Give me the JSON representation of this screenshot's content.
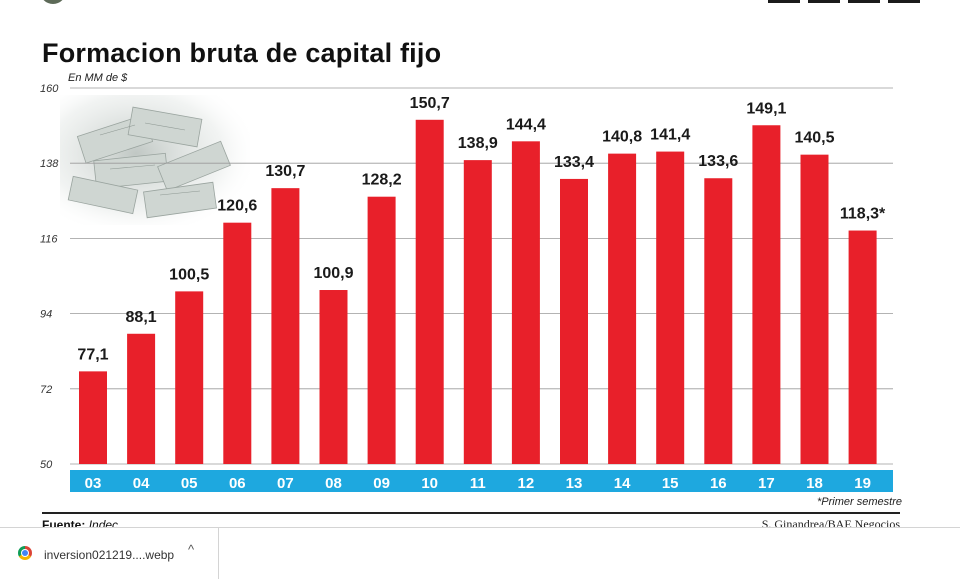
{
  "title": "Formacion bruta de capital fijo",
  "unit_label": "En MM de $",
  "footnote": "*Primer semestre",
  "source": {
    "label": "Fuente:",
    "value": "Indec"
  },
  "credit": "S. Ginandrea/BAE Negocios",
  "colors": {
    "bar": "#e8202a",
    "axis_band": "#1ea8df",
    "grid": "#9a9a9a"
  },
  "download": {
    "file_name": "inversion021219....webp",
    "icon": "chrome-icon",
    "chevron": "^"
  },
  "chart_data": {
    "type": "bar",
    "title": "Formacion bruta de capital fijo",
    "ylabel": "En MM de $",
    "categories": [
      "03",
      "04",
      "05",
      "06",
      "07",
      "08",
      "09",
      "10",
      "11",
      "12",
      "13",
      "14",
      "15",
      "16",
      "17",
      "18",
      "19"
    ],
    "values": [
      77.1,
      88.1,
      100.5,
      120.6,
      130.7,
      100.9,
      128.2,
      150.7,
      138.9,
      144.4,
      133.4,
      140.8,
      141.4,
      133.6,
      149.1,
      140.5,
      118.3
    ],
    "data_labels": [
      "77,1",
      "88,1",
      "100,5",
      "120,6",
      "130,7",
      "100,9",
      "128,2",
      "150,7",
      "138,9",
      "144,4",
      "133,4",
      "140,8",
      "141,4",
      "133,6",
      "149,1",
      "140,5",
      "118,3*"
    ],
    "yticks": [
      50,
      72,
      94,
      116,
      138,
      160
    ],
    "ylim": [
      50,
      160
    ],
    "grid": true
  }
}
